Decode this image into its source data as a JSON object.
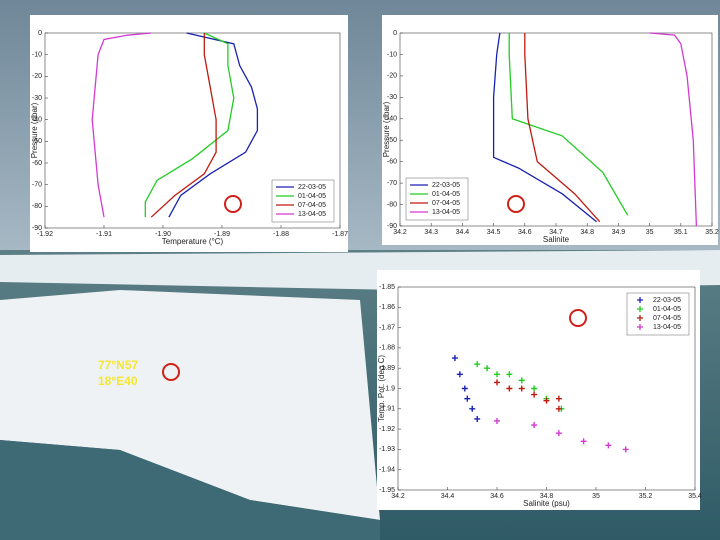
{
  "chart_data": [
    {
      "type": "line",
      "xlabel": "Temperature (°C)",
      "ylabel": "Pressure (dbar)",
      "legend": "lower right",
      "xlim": [
        -1.92,
        -1.87
      ],
      "xticks": [
        -1.92,
        -1.91,
        {
          "value": -1.9,
          "label": "-1.90"
        },
        -1.89,
        -1.88,
        -1.87
      ],
      "ylim": [
        -90,
        0
      ],
      "yticks": [
        0,
        -10,
        -20,
        -30,
        -40,
        -50,
        -60,
        -70,
        -80,
        -90
      ],
      "series": [
        {
          "name": "22-03-05",
          "color": "#1a22b0",
          "x": [
            -1.896,
            -1.888,
            -1.887,
            -1.885,
            -1.884,
            -1.884,
            -1.886,
            -1.892,
            -1.897,
            -1.899
          ],
          "values": [
            0,
            -5,
            -15,
            -25,
            -35,
            -45,
            -55,
            -65,
            -75,
            -85
          ]
        },
        {
          "name": "01-04-05",
          "color": "#22cc22",
          "x": [
            -1.893,
            -1.889,
            -1.889,
            -1.888,
            -1.889,
            -1.895,
            -1.901,
            -1.903,
            -1.903
          ],
          "values": [
            0,
            -5,
            -15,
            -30,
            -45,
            -58,
            -68,
            -78,
            -85
          ]
        },
        {
          "name": "07-04-05",
          "color": "#c01a10",
          "x": [
            -1.893,
            -1.893,
            -1.892,
            -1.891,
            -1.891,
            -1.893,
            -1.898,
            -1.902
          ],
          "values": [
            0,
            -10,
            -25,
            -40,
            -55,
            -65,
            -75,
            -85
          ]
        },
        {
          "name": "13-04-05",
          "color": "#d23ad2",
          "x": [
            -1.902,
            -1.906,
            -1.91,
            -1.911,
            -1.912,
            -1.911,
            -1.91
          ],
          "values": [
            0,
            -1,
            -3,
            -10,
            -40,
            -70,
            -85
          ]
        }
      ]
    },
    {
      "type": "line",
      "xlabel": "Salinite",
      "ylabel": "Pressure (dbar)",
      "legend": "lower left",
      "xlim": [
        34.2,
        35.2
      ],
      "xticks": [
        34.2,
        34.3,
        34.4,
        34.5,
        34.6,
        34.7,
        34.8,
        34.9,
        35,
        35.1,
        35.2
      ],
      "ylim": [
        -90,
        0
      ],
      "yticks": [
        0,
        -10,
        -20,
        -30,
        -40,
        -50,
        -60,
        -70,
        -80,
        -90
      ],
      "series": [
        {
          "name": "22-03-05",
          "color": "#1a22b0",
          "x": [
            34.52,
            34.51,
            34.5,
            34.5,
            34.58,
            34.72,
            34.83
          ],
          "values": [
            0,
            -10,
            -30,
            -58,
            -63,
            -75,
            -88
          ]
        },
        {
          "name": "01-04-05",
          "color": "#22cc22",
          "x": [
            34.55,
            34.55,
            34.56,
            34.72,
            34.85,
            34.93
          ],
          "values": [
            0,
            -10,
            -40,
            -48,
            -65,
            -85
          ]
        },
        {
          "name": "07-04-05",
          "color": "#c01a10",
          "x": [
            34.6,
            34.6,
            34.61,
            34.64,
            34.76,
            34.84
          ],
          "values": [
            0,
            -10,
            -40,
            -60,
            -75,
            -88
          ]
        },
        {
          "name": "13-04-05",
          "color": "#d23ad2",
          "x": [
            35.0,
            35.08,
            35.1,
            35.12,
            35.14,
            35.15
          ],
          "values": [
            0,
            -1,
            -5,
            -20,
            -50,
            -90
          ]
        }
      ]
    },
    {
      "type": "scatter",
      "xlabel": "Salinite (psu)",
      "ylabel": "Temp. Pot. (deg C)",
      "legend": "upper right",
      "xlim": [
        34.2,
        35.4
      ],
      "xticks": [
        34.2,
        34.4,
        34.6,
        34.8,
        35,
        35.2,
        35.4
      ],
      "ylim": [
        -1.95,
        -1.85
      ],
      "yticks": [
        -1.85,
        -1.86,
        -1.87,
        -1.88,
        -1.89,
        -1.9,
        -1.91,
        -1.92,
        -1.93,
        -1.94,
        -1.95
      ],
      "series": [
        {
          "name": "22-03-05",
          "color": "#1a22b0",
          "x": [
            34.43,
            34.45,
            34.47,
            34.48,
            34.5,
            34.52
          ],
          "values": [
            -1.885,
            -1.893,
            -1.9,
            -1.905,
            -1.91,
            -1.915
          ]
        },
        {
          "name": "01-04-05",
          "color": "#22cc22",
          "x": [
            34.52,
            34.56,
            34.6,
            34.65,
            34.7,
            34.75,
            34.8,
            34.86
          ],
          "values": [
            -1.888,
            -1.89,
            -1.893,
            -1.893,
            -1.896,
            -1.9,
            -1.905,
            -1.91
          ]
        },
        {
          "name": "07-04-05",
          "color": "#c01a10",
          "x": [
            34.6,
            34.65,
            34.7,
            34.75,
            34.8,
            34.85,
            34.85
          ],
          "values": [
            -1.897,
            -1.9,
            -1.9,
            -1.903,
            -1.906,
            -1.91,
            -1.905
          ]
        },
        {
          "name": "13-04-05",
          "color": "#d23ad2",
          "x": [
            34.6,
            34.75,
            34.85,
            34.95,
            35.05,
            35.12
          ],
          "values": [
            -1.916,
            -1.918,
            -1.922,
            -1.926,
            -1.928,
            -1.93
          ]
        }
      ]
    }
  ],
  "coords": [
    "77°N57",
    "18°E40"
  ]
}
